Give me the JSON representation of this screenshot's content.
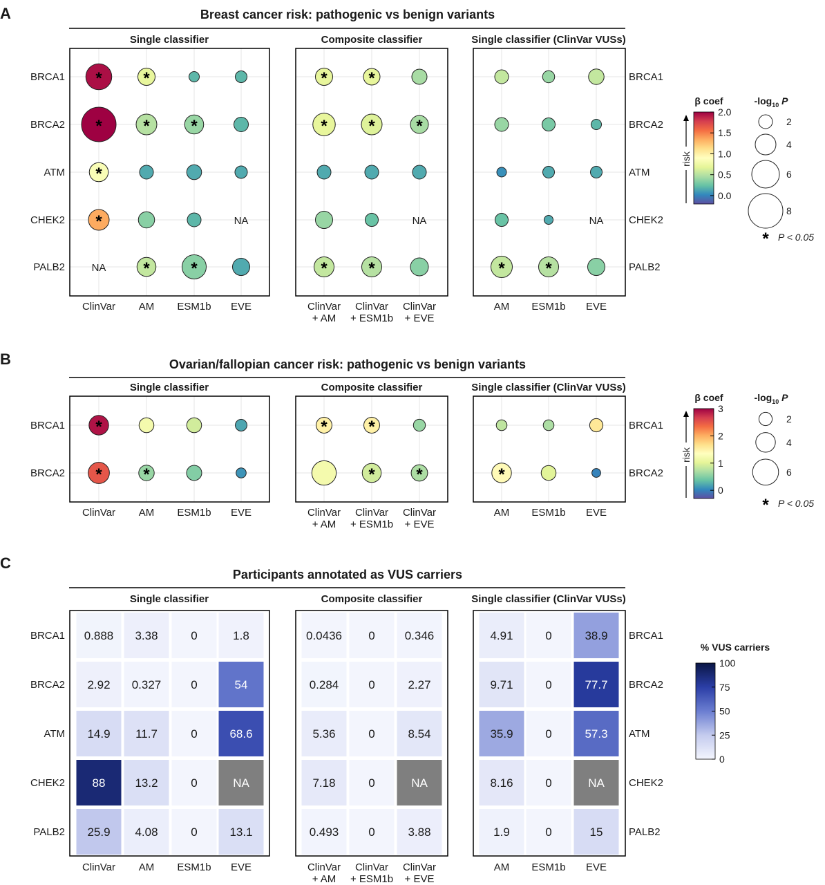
{
  "panels": {
    "A": {
      "label": "A",
      "title": "Breast cancer risk: pathogenic vs benign variants",
      "subtitles": [
        "Single classifier",
        "Composite classifier",
        "Single classifier (ClinVar VUSs)"
      ]
    },
    "B": {
      "label": "B",
      "title": "Ovarian/fallopian cancer risk: pathogenic vs benign variants",
      "subtitles": [
        "Single classifier",
        "Composite classifier",
        "Single classifier (ClinVar VUSs)"
      ]
    },
    "C": {
      "label": "C",
      "title": "Participants annotated as VUS carriers",
      "subtitles": [
        "Single classifier",
        "Composite classifier",
        "Single classifier (ClinVar VUSs)"
      ]
    }
  },
  "legend_text": {
    "beta_coef": "β coef",
    "risk": "risk",
    "neglogp_prefix": "-log",
    "neglogp_sub": "10",
    "neglogp_suffix": " P",
    "star": "*",
    "p_thresh": "P < 0.05",
    "pct_vus": "% VUS carriers",
    "na": "NA"
  },
  "colors": {
    "scale": [
      "#5e4fa2",
      "#3288bd",
      "#66c2a5",
      "#abdda4",
      "#e6f598",
      "#ffffbf",
      "#fee08b",
      "#fdae61",
      "#f46d43",
      "#d53e4f",
      "#9e0142"
    ],
    "heat_low": "#f3f5fd",
    "heat_high": "#0a1645",
    "na_fill": "#7f7f7f"
  },
  "chart_data": [
    {
      "type": "scatter",
      "id": "A",
      "title": "Breast cancer risk: pathogenic vs benign variants",
      "genes": [
        "BRCA1",
        "BRCA2",
        "ATM",
        "CHEK2",
        "PALB2"
      ],
      "groups": [
        {
          "name": "Single classifier",
          "columns": [
            "ClinVar",
            "AM",
            "ESM1b",
            "EVE"
          ]
        },
        {
          "name": "Composite classifier",
          "columns": [
            "ClinVar\n+ AM",
            "ClinVar\n+ ESM1b",
            "ClinVar\n+ EVE"
          ]
        },
        {
          "name": "Single classifier (ClinVar VUSs)",
          "columns": [
            "AM",
            "ESM1b",
            "EVE"
          ]
        }
      ],
      "beta_coef": [
        [
          [
            1.95,
            0.7,
            0.2,
            0.2
          ],
          [
            0.7,
            0.7,
            0.45
          ],
          [
            0.55,
            0.4,
            0.55
          ]
        ],
        [
          [
            2.0,
            0.5,
            0.4,
            0.2
          ],
          [
            0.7,
            0.65,
            0.45
          ],
          [
            0.4,
            0.3,
            0.2
          ]
        ],
        [
          [
            0.85,
            0.15,
            0.15,
            0.15
          ],
          [
            0.15,
            0.15,
            0.15
          ],
          [
            0.05,
            0.15,
            0.15
          ]
        ],
        [
          [
            1.35,
            0.35,
            0.2,
            null
          ],
          [
            0.4,
            0.25,
            null
          ],
          [
            0.25,
            0.15,
            null
          ]
        ],
        [
          [
            null,
            0.55,
            0.35,
            0.15
          ],
          [
            0.55,
            0.5,
            0.35
          ],
          [
            0.55,
            0.5,
            0.35
          ]
        ]
      ],
      "neg_log10_p": [
        [
          [
            5.5,
            3.0,
            1.0,
            1.4
          ],
          [
            3.0,
            2.8,
            2.4
          ],
          [
            2.0,
            1.5,
            2.5
          ]
        ],
        [
          [
            8.0,
            4.0,
            3.5,
            2.2
          ],
          [
            4.5,
            4.0,
            3.2
          ],
          [
            2.0,
            1.8,
            1.0
          ]
        ],
        [
          [
            3.5,
            2.0,
            2.3,
            1.6
          ],
          [
            2.0,
            2.0,
            2.0
          ],
          [
            0.8,
            1.4,
            1.4
          ]
        ],
        [
          [
            4.0,
            2.7,
            2.0,
            null
          ],
          [
            3.0,
            1.8,
            null
          ],
          [
            1.8,
            0.6,
            null
          ]
        ],
        [
          [
            null,
            3.5,
            5.0,
            3.0
          ],
          [
            3.8,
            3.8,
            3.2
          ],
          [
            4.2,
            3.8,
            3.0
          ]
        ]
      ],
      "significant": [
        [
          [
            true,
            true,
            false,
            false
          ],
          [
            true,
            true,
            false
          ],
          [
            false,
            false,
            false
          ]
        ],
        [
          [
            true,
            true,
            true,
            false
          ],
          [
            true,
            true,
            true
          ],
          [
            false,
            false,
            false
          ]
        ],
        [
          [
            true,
            false,
            false,
            false
          ],
          [
            false,
            false,
            false
          ],
          [
            false,
            false,
            false
          ]
        ],
        [
          [
            true,
            false,
            false,
            false
          ],
          [
            false,
            false,
            false
          ],
          [
            false,
            false,
            false
          ]
        ],
        [
          [
            false,
            true,
            true,
            false
          ],
          [
            true,
            true,
            false
          ],
          [
            true,
            true,
            false
          ]
        ]
      ],
      "color_legend": {
        "title": "β coef",
        "ticks": [
          0.0,
          0.5,
          1.0,
          1.5,
          2.0
        ],
        "labels": [
          "0.0",
          "0.5",
          "1.0",
          "1.5",
          "2.0"
        ],
        "range": [
          -0.2,
          2.0
        ]
      },
      "size_legend": {
        "title": "-log10 P",
        "values": [
          2,
          4,
          6,
          8
        ]
      },
      "annotation": "* P < 0.05"
    },
    {
      "type": "scatter",
      "id": "B",
      "title": "Ovarian/fallopian cancer risk: pathogenic vs benign variants",
      "genes": [
        "BRCA1",
        "BRCA2"
      ],
      "groups": [
        {
          "name": "Single classifier",
          "columns": [
            "ClinVar",
            "AM",
            "ESM1b",
            "EVE"
          ]
        },
        {
          "name": "Composite classifier",
          "columns": [
            "ClinVar\n+ AM",
            "ClinVar\n+ ESM1b",
            "ClinVar\n+ EVE"
          ]
        },
        {
          "name": "Single classifier (ClinVar VUSs)",
          "columns": [
            "AM",
            "ESM1b",
            "EVE"
          ]
        }
      ],
      "beta_coef": [
        [
          [
            2.9,
            1.2,
            0.9,
            0.2
          ],
          [
            1.5,
            1.5,
            0.6
          ],
          [
            0.8,
            0.7,
            1.6
          ]
        ],
        [
          [
            2.5,
            0.6,
            0.5,
            0.1
          ],
          [
            1.2,
            0.9,
            0.7
          ],
          [
            1.4,
            1.0,
            0.0
          ]
        ]
      ],
      "neg_log10_p": [
        [
          [
            4.0,
            2.5,
            2.5,
            1.5
          ],
          [
            2.8,
            2.8,
            1.6
          ],
          [
            1.2,
            1.2,
            2.0
          ]
        ],
        [
          [
            4.5,
            2.7,
            2.6,
            1.0
          ],
          [
            5.5,
            3.8,
            3.0
          ],
          [
            4.0,
            2.5,
            0.6
          ]
        ]
      ],
      "significant": [
        [
          [
            true,
            false,
            false,
            false
          ],
          [
            true,
            true,
            false
          ],
          [
            false,
            false,
            false
          ]
        ],
        [
          [
            true,
            true,
            false,
            false
          ],
          [
            false,
            true,
            true
          ],
          [
            true,
            false,
            false
          ]
        ]
      ],
      "color_legend": {
        "title": "β coef",
        "ticks": [
          0,
          1,
          2,
          3
        ],
        "labels": [
          "0",
          "1",
          "2",
          "3"
        ],
        "range": [
          -0.3,
          3.0
        ]
      },
      "size_legend": {
        "title": "-log10 P",
        "values": [
          2,
          4,
          6
        ]
      },
      "annotation": "* P < 0.05"
    },
    {
      "type": "heatmap",
      "id": "C",
      "title": "Participants annotated as VUS carriers",
      "genes": [
        "BRCA1",
        "BRCA2",
        "ATM",
        "CHEK2",
        "PALB2"
      ],
      "groups": [
        {
          "name": "Single classifier",
          "columns": [
            "ClinVar",
            "AM",
            "ESM1b",
            "EVE"
          ]
        },
        {
          "name": "Composite classifier",
          "columns": [
            "ClinVar\n+ AM",
            "ClinVar\n+ ESM1b",
            "ClinVar\n+ EVE"
          ]
        },
        {
          "name": "Single classifier (ClinVar VUSs)",
          "columns": [
            "AM",
            "ESM1b",
            "EVE"
          ]
        }
      ],
      "values": [
        [
          [
            "0.888",
            "3.38",
            "0",
            "1.8"
          ],
          [
            "0.0436",
            "0",
            "0.346"
          ],
          [
            "4.91",
            "0",
            "38.9"
          ]
        ],
        [
          [
            "2.92",
            "0.327",
            "0",
            "54"
          ],
          [
            "0.284",
            "0",
            "2.27"
          ],
          [
            "9.71",
            "0",
            "77.7"
          ]
        ],
        [
          [
            "14.9",
            "11.7",
            "0",
            "68.6"
          ],
          [
            "5.36",
            "0",
            "8.54"
          ],
          [
            "35.9",
            "0",
            "57.3"
          ]
        ],
        [
          [
            "88",
            "13.2",
            "0",
            "NA"
          ],
          [
            "7.18",
            "0",
            "NA"
          ],
          [
            "8.16",
            "0",
            "NA"
          ]
        ],
        [
          [
            "25.9",
            "4.08",
            "0",
            "13.1"
          ],
          [
            "0.493",
            "0",
            "3.88"
          ],
          [
            "1.9",
            "0",
            "15"
          ]
        ]
      ],
      "color_legend": {
        "title": "% VUS carriers",
        "ticks": [
          0,
          25,
          50,
          75,
          100
        ],
        "labels": [
          "0",
          "25",
          "50",
          "75",
          "100"
        ],
        "range": [
          0,
          100
        ]
      }
    }
  ]
}
